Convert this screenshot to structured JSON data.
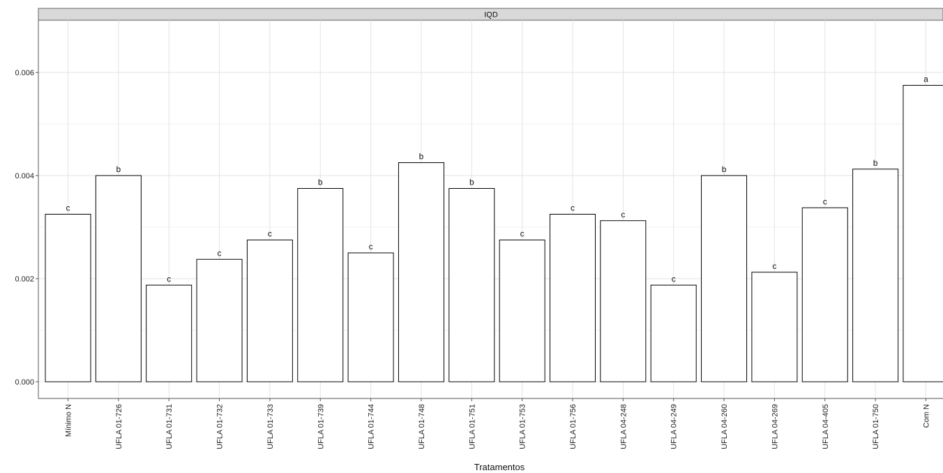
{
  "chart_data": {
    "type": "bar",
    "panel_title": "IQD",
    "xlabel": "Tratamentos",
    "ylabel": "",
    "ylim": [
      0,
      0.007
    ],
    "yticks": [
      "0.000",
      "0.002",
      "0.004",
      "0.006"
    ],
    "ytick_values": [
      0,
      0.002,
      0.004,
      0.006
    ],
    "grid": true,
    "categories": [
      "Mínimo N",
      "UFLA 01-726",
      "UFLA 01-731",
      "UFLA 01-732",
      "UFLA 01-733",
      "UFLA 01-739",
      "UFLA 01-744",
      "UFLA 01-748",
      "UFLA 01-751",
      "UFLA 01-753",
      "UFLA 01-756",
      "UFLA 04-248",
      "UFLA 04-249",
      "UFLA 04-260",
      "UFLA 04-269",
      "UFLA 04-405",
      "UFLA 01-750",
      "Com N"
    ],
    "values": [
      0.00325,
      0.004,
      0.001875,
      0.002375,
      0.00275,
      0.00375,
      0.0025,
      0.00425,
      0.00375,
      0.00275,
      0.00325,
      0.003125,
      0.001875,
      0.004,
      0.002125,
      0.003375,
      0.004125,
      0.00575
    ],
    "significance_letters": [
      "c",
      "b",
      "c",
      "c",
      "c",
      "b",
      "c",
      "b",
      "b",
      "c",
      "c",
      "c",
      "c",
      "b",
      "c",
      "c",
      "b",
      "a"
    ],
    "colors": {
      "bar_fill": "#ffffff",
      "bar_stroke": "#000000",
      "grid": "#e6e6e6",
      "strip_fill": "#d9d9d9"
    }
  }
}
